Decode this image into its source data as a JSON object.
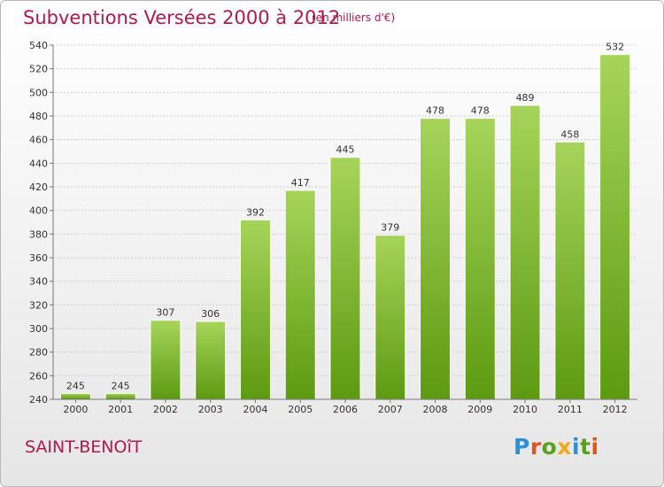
{
  "header": {
    "title": "Subventions Versées 2000 à 2012",
    "subtitle": "(en milliers d'€)"
  },
  "footer": {
    "place": "SAINT-BENOîT",
    "logo": {
      "text": "Proxiti",
      "letter_colors": [
        "#2e8fd6",
        "#e8521f",
        "#5aa21c",
        "#f2a81d",
        "#2e8fd6",
        "#5aa21c",
        "#e8521f"
      ]
    }
  },
  "colors": {
    "title": "#b5174f",
    "bar_top": "#a6d45a",
    "bar_bottom": "#5d9a12",
    "grid": "#cfcfcf",
    "axis": "#777777"
  },
  "chart_data": {
    "type": "bar",
    "title": "Subventions Versées 2000 à 2012",
    "subtitle": "(en milliers d'€)",
    "xlabel": "",
    "ylabel": "",
    "categories": [
      "2000",
      "2001",
      "2002",
      "2003",
      "2004",
      "2005",
      "2006",
      "2007",
      "2008",
      "2009",
      "2010",
      "2011",
      "2012"
    ],
    "values": [
      245,
      245,
      307,
      306,
      392,
      417,
      445,
      379,
      478,
      478,
      489,
      458,
      532
    ],
    "ylim": [
      240,
      540
    ],
    "yticks": [
      240,
      260,
      280,
      300,
      320,
      340,
      360,
      380,
      400,
      420,
      440,
      460,
      480,
      500,
      520,
      540
    ],
    "grid": true,
    "legend": "none"
  }
}
